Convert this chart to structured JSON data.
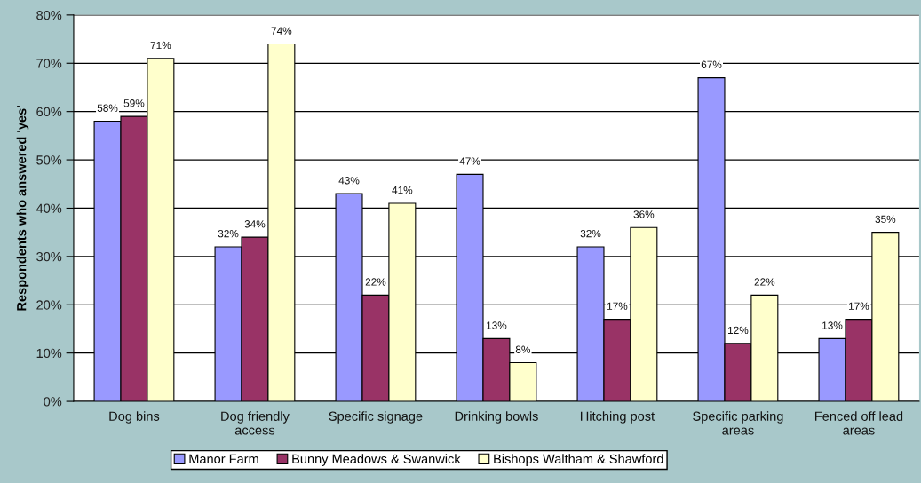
{
  "chart_data": {
    "type": "bar",
    "ylabel": "Respondents who answered 'yes'",
    "categories": [
      "Dog bins",
      "Dog friendly\naccess",
      "Specific signage",
      "Drinking bowls",
      "Hitching post",
      "Specific parking\nareas",
      "Fenced off lead\nareas"
    ],
    "series": [
      {
        "name": "Manor Farm",
        "color": "#9999ff",
        "values": [
          58,
          32,
          43,
          47,
          32,
          67,
          13
        ]
      },
      {
        "name": "Bunny Meadows & Swanwick",
        "color": "#993366",
        "values": [
          59,
          34,
          22,
          13,
          17,
          12,
          17
        ]
      },
      {
        "name": "Bishops Waltham & Shawford",
        "color": "#ffffcc",
        "values": [
          71,
          74,
          41,
          8,
          36,
          22,
          35
        ]
      }
    ],
    "value_labels": [
      [
        "58%",
        "32%",
        "43%",
        "47%",
        "32%",
        "67%",
        "13%"
      ],
      [
        "59%",
        "34%",
        "22%",
        "13%",
        "17%",
        "12%",
        "17%"
      ],
      [
        "71%",
        "74%",
        "41%",
        "8%",
        "36%",
        "22%",
        "35%"
      ]
    ],
    "ylim": [
      0,
      80
    ],
    "yticks": [
      {
        "value": 0,
        "label": "0%"
      },
      {
        "value": 10,
        "label": "10%"
      },
      {
        "value": 20,
        "label": "20%"
      },
      {
        "value": 30,
        "label": "30%"
      },
      {
        "value": 40,
        "label": "40%"
      },
      {
        "value": 50,
        "label": "50%"
      },
      {
        "value": 60,
        "label": "60%"
      },
      {
        "value": 70,
        "label": "70%"
      },
      {
        "value": 80,
        "label": "80%"
      }
    ],
    "grid": "y",
    "legend": "bottom"
  }
}
